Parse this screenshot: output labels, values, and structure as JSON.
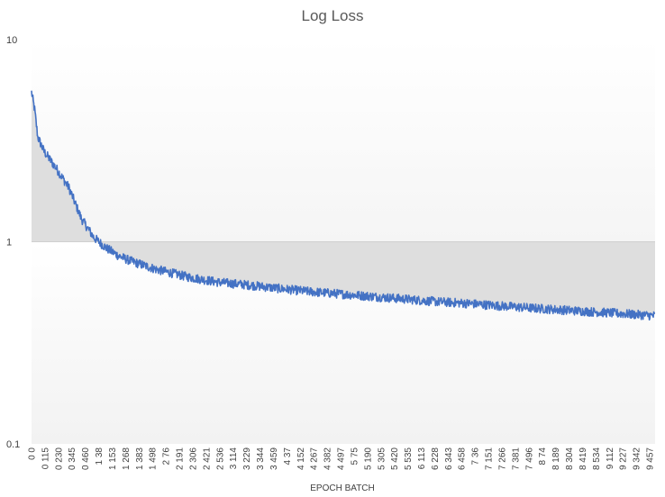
{
  "chart_data": {
    "type": "line",
    "title": "Log Loss",
    "xlabel": "EPOCH BATCH",
    "ylabel": "",
    "y_scale": "log",
    "ylim": [
      0.1,
      10
    ],
    "y_ticks": [
      "10",
      "1",
      "0.1"
    ],
    "y_tick_values": [
      10,
      1,
      0.1
    ],
    "grid": false,
    "legend": "none",
    "x_tick_labels": [
      "0 0",
      "0 115",
      "0 230",
      "0 345",
      "0 460",
      "1 38",
      "1 153",
      "1 268",
      "1 383",
      "1 498",
      "2 76",
      "2 191",
      "2 306",
      "2 421",
      "2 536",
      "3 114",
      "3 229",
      "3 344",
      "3 459",
      "4 37",
      "4 152",
      "4 267",
      "4 382",
      "4 497",
      "5 75",
      "5 190",
      "5 305",
      "5 420",
      "5 535",
      "6 113",
      "6 228",
      "6 343",
      "6 458",
      "7 36",
      "7 151",
      "7 266",
      "7 381",
      "7 496",
      "8 74",
      "8 189",
      "8 304",
      "8 419",
      "8 534",
      "9 112",
      "9 227",
      "9 342",
      "9 457"
    ],
    "series": [
      {
        "name": "",
        "x": [
          0,
          0.005,
          0.01,
          0.02,
          0.04,
          0.06,
          0.08,
          0.1,
          0.12,
          0.14,
          0.16,
          0.2,
          0.25,
          0.3,
          0.35,
          0.4,
          0.45,
          0.5,
          0.55,
          0.6,
          0.65,
          0.7,
          0.75,
          0.8,
          0.85,
          0.9,
          0.95,
          1.0
        ],
        "y": [
          5.5,
          4.5,
          3.3,
          2.8,
          2.3,
          1.85,
          1.3,
          1.05,
          0.93,
          0.85,
          0.8,
          0.73,
          0.67,
          0.63,
          0.61,
          0.585,
          0.565,
          0.55,
          0.535,
          0.52,
          0.505,
          0.495,
          0.482,
          0.47,
          0.46,
          0.45,
          0.44,
          0.43
        ]
      }
    ],
    "colors": {
      "line": "#4472c4",
      "fill_upper": "#dedede",
      "fill_lower": "#f5f5f5"
    }
  }
}
